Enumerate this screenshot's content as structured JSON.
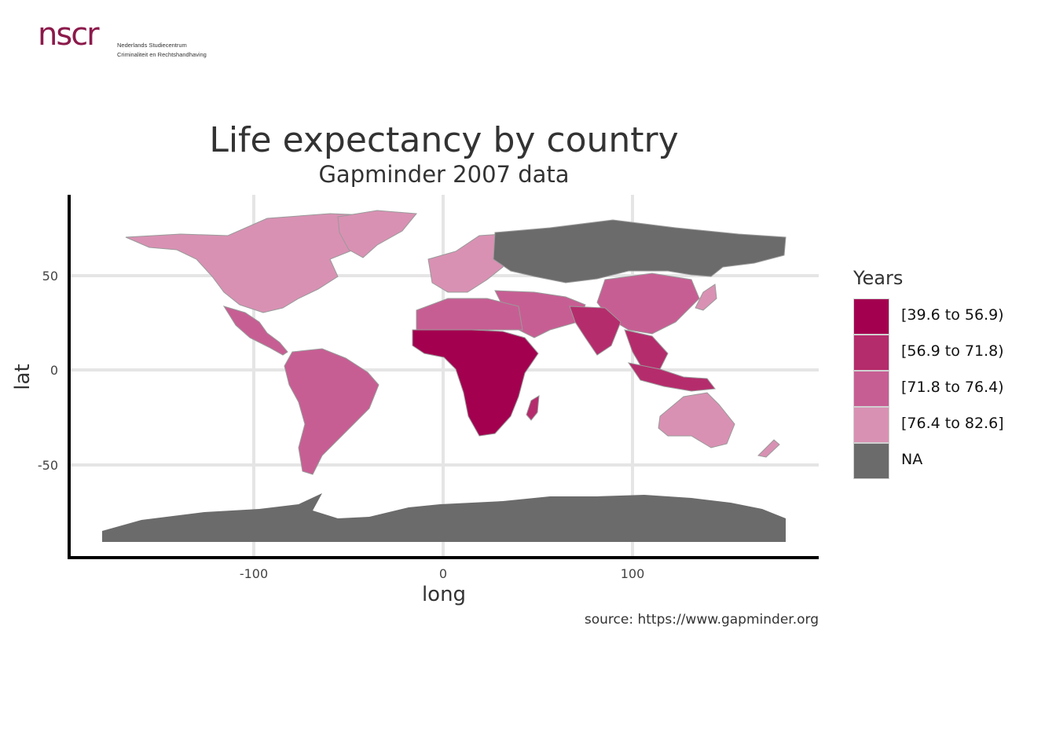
{
  "logo": {
    "mark": "nscr",
    "line1": "Nederlands Studiecentrum",
    "line2": "Criminaliteit en Rechtshandhaving"
  },
  "title": "Life expectancy by country",
  "subtitle": "Gapminder 2007 data",
  "caption": "source: https://www.gapminder.org",
  "chart_data": {
    "type": "choropleth map",
    "xlabel": "long",
    "ylabel": "lat",
    "xlim": [
      -180,
      180
    ],
    "ylim": [
      -90,
      85
    ],
    "x_ticks": [
      -100,
      0,
      100
    ],
    "y_ticks": [
      50,
      0,
      -50
    ],
    "x_tick_labels": [
      "-100",
      "0",
      "100"
    ],
    "y_tick_labels": [
      "50",
      "0",
      "-50"
    ],
    "grid": true,
    "legend_placement": "right",
    "legend": {
      "title": "Years",
      "bins": [
        {
          "label": "[39.6 to 56.9)",
          "color": "#a30050"
        },
        {
          "label": "[56.9 to 71.8)",
          "color": "#b52c6c"
        },
        {
          "label": "[71.8 to 76.4)",
          "color": "#c75e93"
        },
        {
          "label": "[76.4 to 82.6]",
          "color": "#d991b3"
        },
        {
          "label": "NA",
          "color": "#6b6b6b"
        }
      ]
    }
  }
}
